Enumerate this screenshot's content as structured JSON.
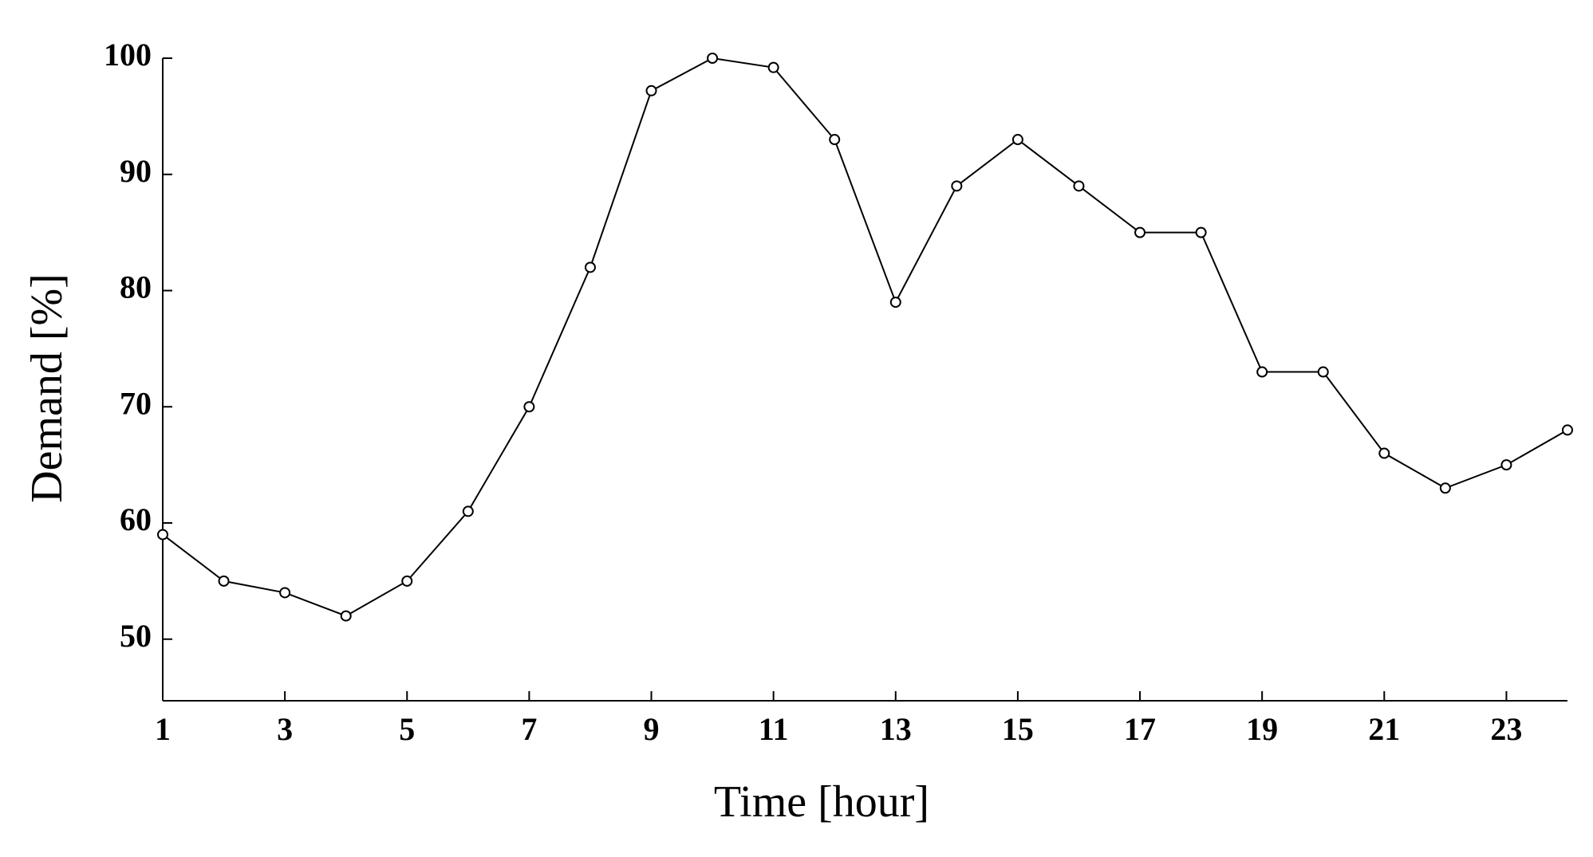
{
  "chart_data": {
    "type": "line",
    "x_label": "Time [hour]",
    "y_label": "Demand [%]",
    "x": [
      1,
      2,
      3,
      4,
      5,
      6,
      7,
      8,
      9,
      10,
      11,
      12,
      13,
      14,
      15,
      16,
      17,
      18,
      19,
      20,
      21,
      22,
      23,
      24
    ],
    "series": [
      {
        "color": "#000000",
        "values": [
          59,
          55,
          54,
          52,
          55,
          61,
          70,
          82,
          97.2,
          100,
          99.2,
          93,
          79,
          89,
          93,
          89,
          85,
          85,
          73,
          73,
          66,
          63,
          65,
          68
        ]
      }
    ],
    "xlim": [
      1,
      24
    ],
    "xticks": [
      1,
      3,
      5,
      7,
      9,
      11,
      13,
      15,
      17,
      19,
      21,
      23
    ],
    "ylim": [
      44.7,
      100
    ],
    "yticks": [
      50,
      60,
      70,
      80,
      90,
      100
    ],
    "grid": false
  }
}
